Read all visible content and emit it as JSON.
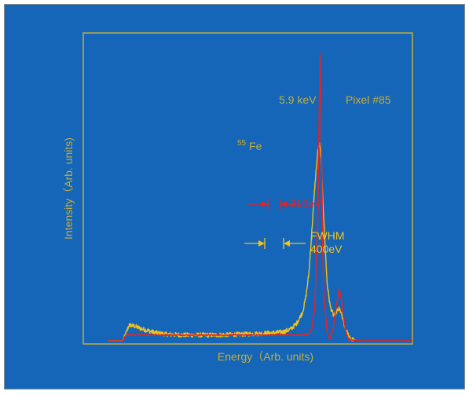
{
  "colors": {
    "background": "#1565b8",
    "frame": "#c3ad3c",
    "outer_border": "#8a8a8a",
    "yellow_series": "#f2c41a",
    "red_series": "#e0242a"
  },
  "chart_data": {
    "type": "line",
    "title": "",
    "xlabel": "Energy（Arb. units)",
    "ylabel": "Intensity（Arb. units)",
    "xlim": [
      0,
      100
    ],
    "ylim": [
      0,
      100
    ],
    "grid": false,
    "legend": "none",
    "series": [
      {
        "color": "#f2c41a",
        "noise": 0.8,
        "x": [
          0,
          5,
          6.2,
          7,
          9,
          11,
          13,
          15,
          17,
          20,
          25,
          30,
          35,
          40,
          45,
          50,
          55,
          58,
          60,
          62,
          64,
          65,
          66,
          67,
          68,
          68.5,
          69,
          69.5,
          70,
          70.5,
          71,
          71.5,
          72,
          73,
          74,
          74.5,
          75,
          76,
          76.5,
          77,
          77.5,
          78,
          79,
          80,
          82
        ],
        "y": [
          0,
          0,
          3,
          5.5,
          5,
          4.2,
          3.6,
          3,
          2.6,
          2.2,
          2,
          2,
          2,
          2.1,
          2.3,
          2.5,
          2.8,
          3.2,
          4,
          6,
          10,
          15,
          23,
          38,
          54,
          60,
          66,
          68,
          64,
          52,
          40,
          30,
          20,
          12,
          9,
          9,
          10,
          11,
          10,
          8,
          6,
          4,
          2,
          0.5,
          0
        ]
      },
      {
        "color": "#e0242a",
        "noise": 0.2,
        "x": [
          0,
          5,
          6,
          7,
          10,
          20,
          40,
          60,
          64,
          66,
          67,
          68,
          69,
          69.4,
          69.7,
          70,
          70.3,
          70.6,
          71,
          72,
          73,
          74,
          75,
          76,
          77,
          78,
          79,
          82,
          100
        ],
        "y": [
          0,
          0,
          2,
          2,
          2,
          2,
          2,
          2,
          2,
          2.5,
          4,
          12,
          45,
          78,
          100,
          80,
          55,
          30,
          15,
          3,
          0.5,
          4,
          12,
          18,
          12,
          4,
          0.5,
          0,
          0
        ]
      }
    ],
    "annotations": {
      "peak_label": "5.9 keV",
      "pixel_label": "Pixel #85",
      "isotope_mass": "55",
      "isotope_symbol": "Fe",
      "red_fwhm": "215eV",
      "yellow_fwhm_title": "FWHM",
      "yellow_fwhm": "400eV"
    }
  }
}
